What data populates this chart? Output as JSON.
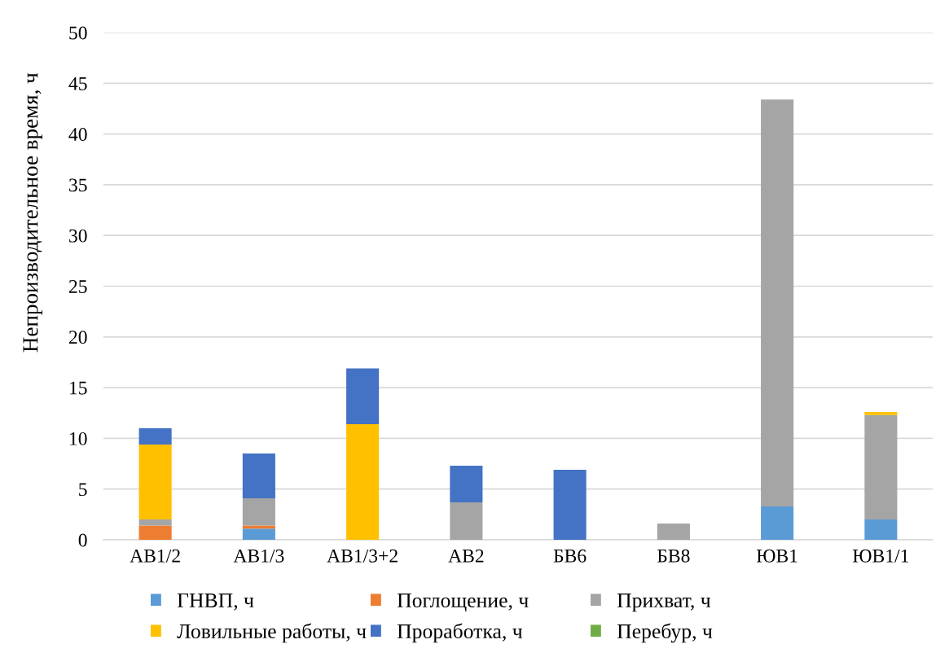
{
  "chart_data": {
    "type": "bar",
    "stacked": true,
    "ylabel": "Непроизводительное время, ч",
    "categories": [
      "АВ1/2",
      "АВ1/3",
      "АВ1/3+2",
      "АВ2",
      "БВ6",
      "БВ8",
      "ЮВ1",
      "ЮВ1/1"
    ],
    "series": [
      {
        "name": "ГНВП, ч",
        "color": "#5b9bd5",
        "values": [
          null,
          1.1,
          null,
          null,
          null,
          null,
          3.3,
          2.0
        ]
      },
      {
        "name": "Поглощение, ч",
        "color": "#ed7d31",
        "values": [
          1.4,
          0.3,
          null,
          null,
          null,
          null,
          null,
          null
        ]
      },
      {
        "name": "Прихват, ч",
        "color": "#a5a5a5",
        "values": [
          0.6,
          2.7,
          null,
          3.7,
          null,
          1.6,
          40.1,
          10.3
        ]
      },
      {
        "name": "Ловильные работы, ч",
        "color": "#ffc000",
        "values": [
          7.4,
          null,
          11.4,
          null,
          null,
          null,
          null,
          0.3
        ]
      },
      {
        "name": "Проработка, ч",
        "color": "#4472c4",
        "values": [
          1.6,
          4.4,
          5.5,
          3.6,
          6.9,
          null,
          null,
          null
        ]
      },
      {
        "name": "Перебур, ч",
        "color": "#70ad47",
        "values": [
          null,
          null,
          null,
          null,
          null,
          null,
          null,
          null
        ]
      }
    ],
    "ylim": [
      0,
      50
    ],
    "yticks": [
      0,
      5,
      10,
      15,
      20,
      25,
      30,
      35,
      40,
      45,
      50
    ],
    "grid": "y",
    "legend": "bottom"
  }
}
